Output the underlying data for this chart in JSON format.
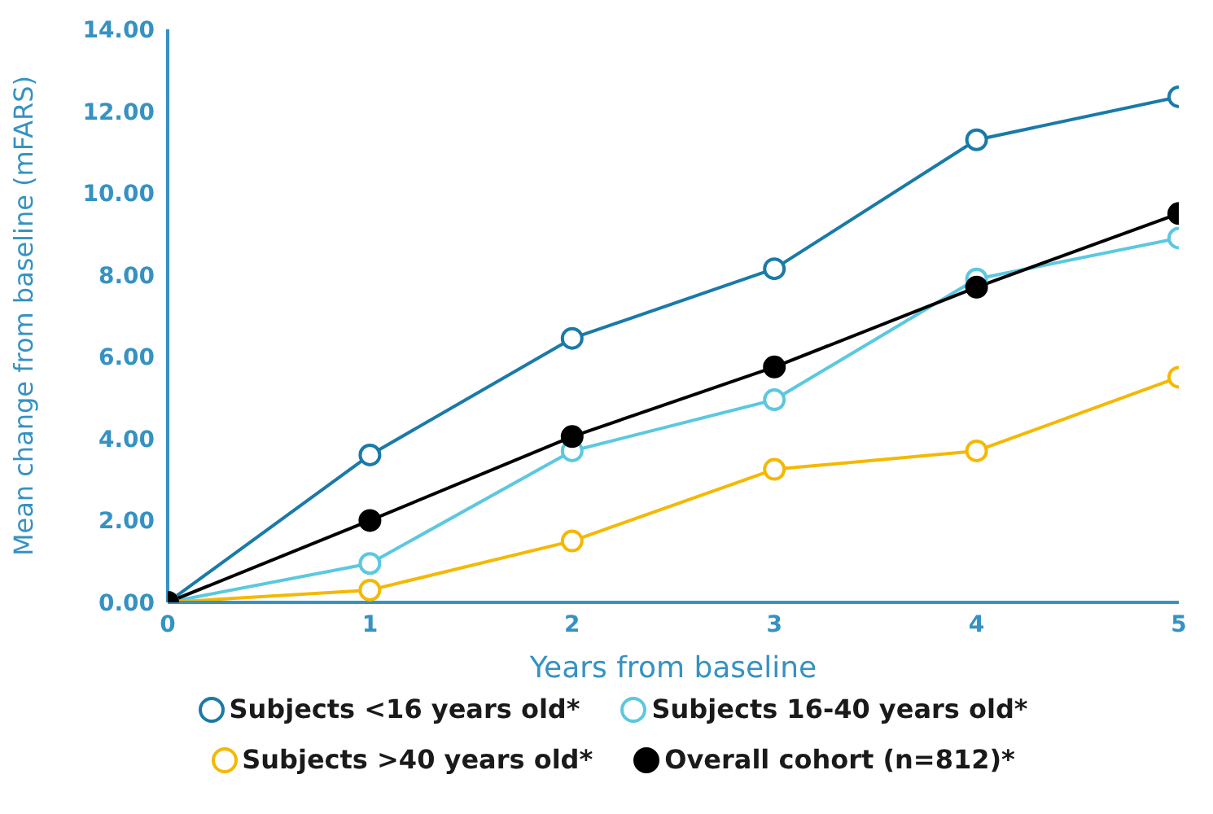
{
  "chart_data": {
    "type": "line",
    "xlabel": "Years from baseline",
    "ylabel": "Mean change from baseline (mFARS)",
    "x": [
      0,
      1,
      2,
      3,
      4,
      5
    ],
    "xlim": [
      0,
      5
    ],
    "xticks": [
      0,
      1,
      2,
      3,
      4,
      5
    ],
    "ylim": [
      0,
      14
    ],
    "yticks": [
      {
        "value": 0,
        "label": "0.00"
      },
      {
        "value": 2,
        "label": "2.00"
      },
      {
        "value": 4,
        "label": "4.00"
      },
      {
        "value": 6,
        "label": "6.00"
      },
      {
        "value": 8,
        "label": "8.00"
      },
      {
        "value": 10,
        "label": "10.00"
      },
      {
        "value": 12,
        "label": "12.00"
      },
      {
        "value": 14,
        "label": "14.00"
      }
    ],
    "grid": false,
    "legend": "bottom",
    "marker": "circle",
    "line_style": "solid",
    "series": [
      {
        "name": "Subjects <16 years old*",
        "color": "#1a7aa8",
        "values": [
          0,
          3.6,
          6.45,
          8.15,
          11.3,
          12.35
        ]
      },
      {
        "name": "Subjects 16-40 years old*",
        "color": "#5bc8e0",
        "values": [
          0,
          0.95,
          3.7,
          4.95,
          7.9,
          8.9
        ]
      },
      {
        "name": "Subjects >40 years old*",
        "color": "#f5b800",
        "values": [
          0,
          0.3,
          1.5,
          3.25,
          3.7,
          5.5
        ]
      },
      {
        "name": "Overall cohort (n=812)*",
        "color": "#000000",
        "values": [
          0,
          2,
          4.05,
          5.75,
          7.7,
          9.5
        ]
      }
    ]
  }
}
